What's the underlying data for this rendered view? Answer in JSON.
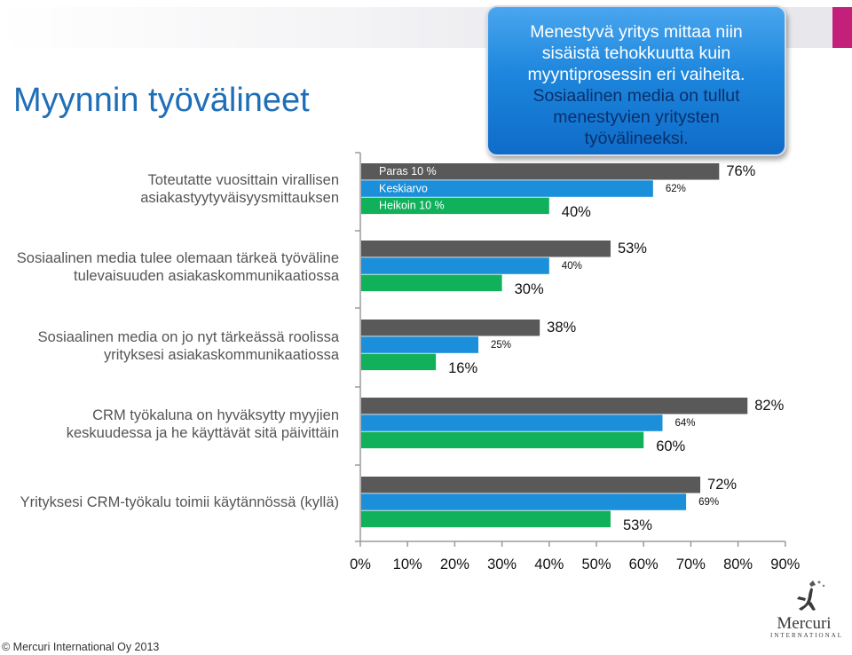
{
  "page": {
    "title": "Myynnin työvälineet",
    "footer": "© Mercuri International Oy 2013"
  },
  "callout": {
    "lines": [
      "Menestyvä yritys mittaa niin",
      "sisäistä tehokkuutta kuin",
      "myyntiprosessin eri vaiheita.",
      "Sosiaalinen media on tullut",
      "menestyvien yritysten",
      "työvälineeksi."
    ]
  },
  "logo": {
    "name": "Mercuri",
    "sub": "INTERNATIONAL",
    "icon": "mercuri-figure-icon"
  },
  "colors": {
    "paras": "#595959",
    "keskiarvo": "#1b8fd9",
    "heikoin": "#11b05a",
    "title": "#1f6fb7",
    "callout": "#1f86dc",
    "accent": "#c2207a"
  },
  "chart_data": {
    "type": "bar",
    "orientation": "horizontal",
    "categories": [
      [
        "Toteutatte vuosittain virallisen",
        "asiakastyytyväisyysmittauksen"
      ],
      [
        "Sosiaalinen media tulee olemaan tärkeä työväline",
        "tulevaisuuden asiakaskommunikaatiossa"
      ],
      [
        "Sosiaalinen media on jo nyt tärkeässä roolissa",
        "yrityksesi asiakaskommunikaatiossa"
      ],
      [
        "CRM työkaluna on hyväksytty myyjien",
        "keskuudessa ja he käyttävät sitä päivittäin"
      ],
      [
        "Yrityksesi CRM-työkalu toimii käytännössä (kyllä)"
      ]
    ],
    "series": [
      {
        "name": "Paras 10 %",
        "values": [
          76,
          53,
          38,
          82,
          72
        ],
        "color": "#595959",
        "labels": [
          "76%",
          "53%",
          "38%",
          "82%",
          "72%"
        ]
      },
      {
        "name": "Keskiarvo",
        "values": [
          62,
          40,
          25,
          64,
          69
        ],
        "color": "#1b8fd9",
        "labels": [
          "62%",
          "40%",
          "25%",
          "64%",
          "69%"
        ]
      },
      {
        "name": "Heikoin 10 %",
        "values": [
          40,
          30,
          16,
          60,
          53
        ],
        "color": "#11b05a",
        "labels": [
          "40%",
          "30%",
          "16%",
          "60%",
          "53%"
        ]
      }
    ],
    "xlim": [
      0,
      90
    ],
    "xticks": [
      "0%",
      "10%",
      "20%",
      "30%",
      "40%",
      "50%",
      "60%",
      "70%",
      "80%",
      "90%"
    ],
    "legend": "inside bars of first category",
    "grid": false
  }
}
